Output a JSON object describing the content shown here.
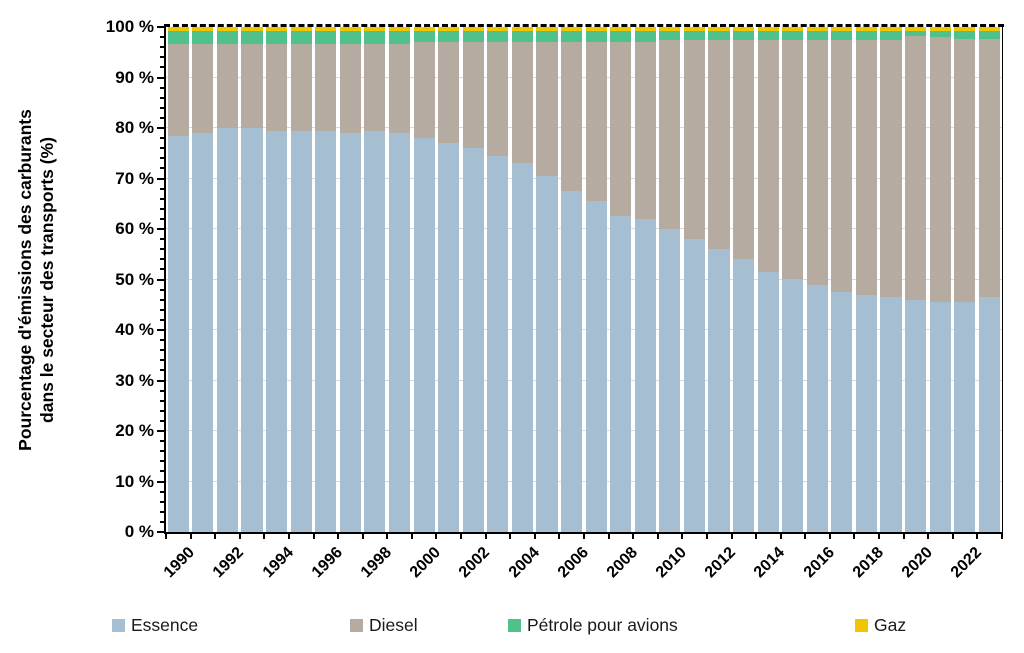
{
  "chart_data": {
    "type": "bar",
    "stacked": true,
    "percent_stacked": true,
    "title": "",
    "ylabel_line1": "Pourcentage d'émissions des carburants",
    "ylabel_line2": "dans le secteur des transports  (%)",
    "ylim": [
      0,
      100
    ],
    "grid": true,
    "legend_position": "bottom",
    "categories": [
      1990,
      1991,
      1992,
      1993,
      1994,
      1995,
      1996,
      1997,
      1998,
      1999,
      2000,
      2001,
      2002,
      2003,
      2004,
      2005,
      2006,
      2007,
      2008,
      2009,
      2010,
      2011,
      2012,
      2013,
      2014,
      2015,
      2016,
      2017,
      2018,
      2019,
      2020,
      2021,
      2022,
      2023
    ],
    "x_tick_labels": [
      "1990",
      "1992",
      "1994",
      "1996",
      "1998",
      "2000",
      "2002",
      "2004",
      "2006",
      "2008",
      "2010",
      "2012",
      "2014",
      "2016",
      "2018",
      "2020",
      "2022"
    ],
    "y_tick_labels": [
      "0 %",
      "10 %",
      "20 %",
      "30 %",
      "40 %",
      "50 %",
      "60 %",
      "70 %",
      "80 %",
      "90 %",
      "100 %"
    ],
    "series": [
      {
        "name": "Essence",
        "color": "#a6bed2",
        "values": [
          78.5,
          79,
          80,
          80,
          79.5,
          79.5,
          79.5,
          79,
          79.5,
          79,
          78,
          77,
          76,
          74.5,
          73,
          70.5,
          67.5,
          65.5,
          62.5,
          62,
          60,
          58,
          56,
          54,
          51.5,
          50,
          49,
          47.5,
          47,
          46.5,
          46,
          45.5,
          45.5,
          46.5
        ]
      },
      {
        "name": "Diesel",
        "color": "#b5aba1",
        "values": [
          18.2,
          17.7,
          16.7,
          16.7,
          17.2,
          17.2,
          17.2,
          17.7,
          17.2,
          17.7,
          19,
          20,
          21,
          22.5,
          24,
          26.5,
          29.5,
          31.5,
          34.5,
          35,
          37.4,
          39.4,
          41.4,
          43.4,
          45.9,
          47.4,
          48.4,
          49.9,
          50.4,
          50.9,
          52.2,
          52.5,
          52.2,
          51.2
        ]
      },
      {
        "name": "Pétrole pour avions",
        "color": "#4fc18a",
        "values": [
          2.5,
          2.5,
          2.5,
          2.5,
          2.5,
          2.5,
          2.5,
          2.5,
          2.5,
          2.5,
          2.2,
          2.2,
          2.2,
          2.2,
          2.2,
          2.2,
          2.2,
          2.2,
          2.2,
          2.2,
          1.8,
          1.8,
          1.8,
          1.8,
          1.8,
          1.8,
          1.8,
          1.8,
          1.8,
          1.8,
          1,
          1.2,
          1.5,
          1.5
        ]
      },
      {
        "name": "Gaz",
        "color": "#f2c502",
        "values": [
          0.8,
          0.8,
          0.8,
          0.8,
          0.8,
          0.8,
          0.8,
          0.8,
          0.8,
          0.8,
          0.8,
          0.8,
          0.8,
          0.8,
          0.8,
          0.8,
          0.8,
          0.8,
          0.8,
          0.8,
          0.8,
          0.8,
          0.8,
          0.8,
          0.8,
          0.8,
          0.8,
          0.8,
          0.8,
          0.8,
          0.8,
          0.8,
          0.8,
          0.8
        ]
      }
    ],
    "colors": {
      "gridline": "#d9d9d9",
      "axis": "#000000",
      "hundred_line_dashed": "#000000"
    }
  }
}
